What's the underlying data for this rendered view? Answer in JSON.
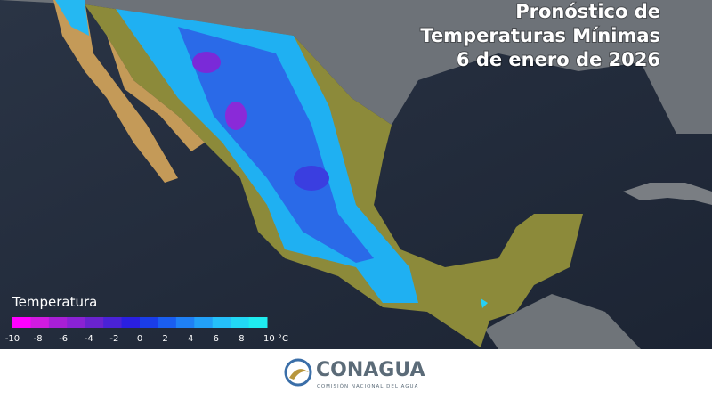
{
  "title": {
    "lines": [
      "Pronóstico de",
      "Temperaturas Mínimas",
      "6 de enero de 2026"
    ]
  },
  "legend": {
    "title": "Temperatura",
    "labels": [
      "-10",
      "-8",
      "-6",
      "-4",
      "-2",
      "0",
      "2",
      "4",
      "6",
      "8",
      "10 °C"
    ],
    "colors": [
      "#ff00ff",
      "#d11be0",
      "#a81fd6",
      "#8a22d4",
      "#6a23cf",
      "#4a22d6",
      "#2a1fe0",
      "#1a3de8",
      "#1a5ef0",
      "#1f80f5",
      "#22a0f8",
      "#25c0fa",
      "#22d8f5",
      "#1fecef"
    ]
  },
  "footer": {
    "brand": "CONAGUA",
    "subtitle": "COMISIÓN NACIONAL DEL AGUA"
  }
}
